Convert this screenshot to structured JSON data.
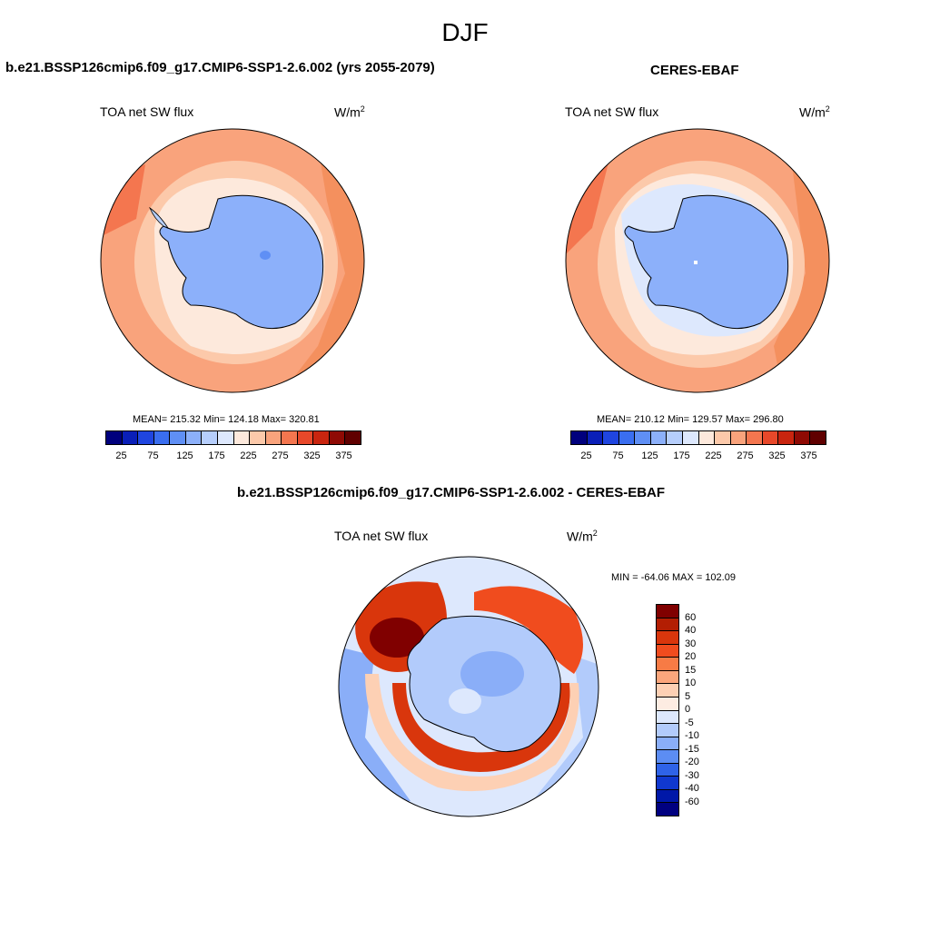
{
  "title": "DJF",
  "panels": [
    {
      "title": "b.e21.BSSP126cmip6.f09_g17.CMIP6-SSP1-2.6.002 (yrs 2055-2079)",
      "field": "TOA net SW flux",
      "units_base": "W/m",
      "units_exp": "2",
      "stats": "MEAN= 215.32  Min= 124.18  Max= 320.81"
    },
    {
      "title": "CERES-EBAF",
      "field": "TOA net SW flux",
      "units_base": "W/m",
      "units_exp": "2",
      "stats": "MEAN= 210.12  Min= 129.57  Max= 296.80"
    },
    {
      "title": "b.e21.BSSP126cmip6.f09_g17.CMIP6-SSP1-2.6.002 - CERES-EBAF",
      "field": "TOA net SW flux",
      "units_base": "W/m",
      "units_exp": "2",
      "stats": "MIN = -64.06 MAX = 102.09"
    }
  ],
  "abs_colorbar": {
    "colors": [
      "#00007d",
      "#0a1fb8",
      "#1f45e0",
      "#3a6ef0",
      "#5f8ff5",
      "#8cb0fa",
      "#b6cefc",
      "#dde8fd",
      "#fde9dc",
      "#fcc9aa",
      "#f9a37c",
      "#f4764f",
      "#e8482a",
      "#c9250f",
      "#8f0a04",
      "#600000"
    ],
    "ticks": [
      "25",
      "75",
      "125",
      "175",
      "225",
      "275",
      "325",
      "375"
    ]
  },
  "diff_colorbar": {
    "colors": [
      "#800000",
      "#b31e03",
      "#d9360c",
      "#f04c1e",
      "#f77b45",
      "#fba67c",
      "#fdd0b4",
      "#fdece2",
      "#dde8fd",
      "#b2cbfb",
      "#8aaef8",
      "#5c8df3",
      "#2f63e8",
      "#1038cf",
      "#0018a8",
      "#000080"
    ],
    "ticks": [
      "60",
      "40",
      "30",
      "20",
      "15",
      "10",
      "5",
      "0",
      "-5",
      "-10",
      "-15",
      "-20",
      "-30",
      "-40",
      "-60"
    ]
  }
}
